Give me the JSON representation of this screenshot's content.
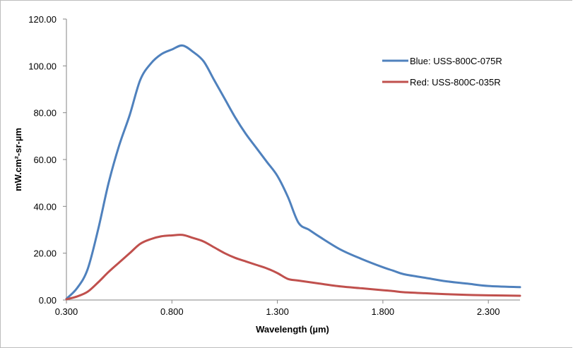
{
  "chart_data": {
    "type": "line",
    "title": "",
    "xlabel": "Wavelength (µm)",
    "ylabel": "mW.cm²-sr-µm",
    "xlim": [
      0.3,
      2.45
    ],
    "ylim": [
      0,
      120
    ],
    "x_ticks": [
      "0.300",
      "0.800",
      "1.300",
      "1.800",
      "2.300"
    ],
    "x_tick_values": [
      0.3,
      0.8,
      1.3,
      1.8,
      2.3
    ],
    "y_ticks": [
      "0.00",
      "20.00",
      "40.00",
      "60.00",
      "80.00",
      "100.00",
      "120.00"
    ],
    "y_tick_values": [
      0,
      20,
      40,
      60,
      80,
      100,
      120
    ],
    "grid": false,
    "legend_position": "top-right",
    "series": [
      {
        "name": "Blue:  USS-800C-075R",
        "color": "#4F81BD",
        "points": [
          [
            0.3,
            0.5
          ],
          [
            0.35,
            5
          ],
          [
            0.4,
            13
          ],
          [
            0.45,
            30
          ],
          [
            0.5,
            50
          ],
          [
            0.55,
            66
          ],
          [
            0.6,
            79
          ],
          [
            0.65,
            94
          ],
          [
            0.7,
            101
          ],
          [
            0.75,
            105
          ],
          [
            0.8,
            107
          ],
          [
            0.85,
            108.7
          ],
          [
            0.9,
            106
          ],
          [
            0.95,
            102
          ],
          [
            1.0,
            94
          ],
          [
            1.05,
            86
          ],
          [
            1.1,
            78
          ],
          [
            1.15,
            71
          ],
          [
            1.2,
            65
          ],
          [
            1.25,
            59
          ],
          [
            1.3,
            53
          ],
          [
            1.35,
            44
          ],
          [
            1.4,
            33
          ],
          [
            1.45,
            30
          ],
          [
            1.5,
            27
          ],
          [
            1.6,
            21.5
          ],
          [
            1.7,
            17.5
          ],
          [
            1.8,
            14
          ],
          [
            1.85,
            12.5
          ],
          [
            1.9,
            11
          ],
          [
            2.0,
            9.5
          ],
          [
            2.1,
            8
          ],
          [
            2.2,
            7
          ],
          [
            2.3,
            6
          ],
          [
            2.45,
            5.5
          ]
        ]
      },
      {
        "name": "Red:  USS-800C-035R",
        "color": "#C0504D",
        "points": [
          [
            0.3,
            0.3
          ],
          [
            0.35,
            1.5
          ],
          [
            0.4,
            3.5
          ],
          [
            0.45,
            7.5
          ],
          [
            0.5,
            12
          ],
          [
            0.55,
            16
          ],
          [
            0.6,
            20
          ],
          [
            0.65,
            24
          ],
          [
            0.7,
            26
          ],
          [
            0.75,
            27.2
          ],
          [
            0.8,
            27.6
          ],
          [
            0.85,
            27.8
          ],
          [
            0.9,
            26.5
          ],
          [
            0.95,
            25
          ],
          [
            1.0,
            22.5
          ],
          [
            1.05,
            20
          ],
          [
            1.1,
            18
          ],
          [
            1.15,
            16.5
          ],
          [
            1.2,
            15
          ],
          [
            1.25,
            13.5
          ],
          [
            1.3,
            11.5
          ],
          [
            1.35,
            9
          ],
          [
            1.4,
            8.3
          ],
          [
            1.5,
            7
          ],
          [
            1.6,
            5.8
          ],
          [
            1.7,
            5
          ],
          [
            1.8,
            4.2
          ],
          [
            1.85,
            3.8
          ],
          [
            1.9,
            3.3
          ],
          [
            2.0,
            2.9
          ],
          [
            2.1,
            2.5
          ],
          [
            2.2,
            2.2
          ],
          [
            2.3,
            2
          ],
          [
            2.45,
            1.8
          ]
        ]
      }
    ]
  }
}
